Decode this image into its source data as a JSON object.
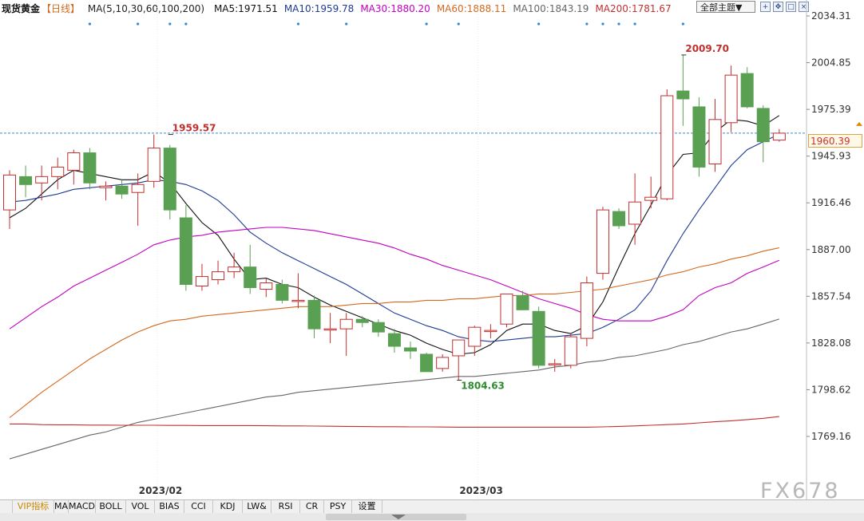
{
  "header": {
    "symbol": "现货黄金",
    "period": "【日线】",
    "indicator_label": "MA(5,10,30,60,100,200)",
    "ma_items": [
      {
        "label": "MA5:1971.51",
        "color": "#111111"
      },
      {
        "label": "MA10:1959.78",
        "color": "#1f3a93"
      },
      {
        "label": "MA30:1880.20",
        "color": "#c000c0"
      },
      {
        "label": "MA60:1888.11",
        "color": "#d2691e"
      },
      {
        "label": "MA100:1843.19",
        "color": "#666666"
      },
      {
        "label": "MA200:1781.67",
        "color": "#c03030"
      }
    ],
    "theme_button": "全部主题▼",
    "tool_icons": [
      "expand-icon",
      "move-icon",
      "restore-icon",
      "close-icon"
    ]
  },
  "current_price_tag": "1960.39",
  "watermark": "FX678",
  "tabs": [
    "VIP指标",
    "MA",
    "MACD",
    "BOLL",
    "VOL",
    "BIAS",
    "CCI",
    "KDJ",
    "LW&",
    "RSI",
    "CR",
    "PSY",
    "设置"
  ],
  "chart_data": {
    "type": "candlestick",
    "yticks": [
      2034.31,
      2004.85,
      1975.39,
      1945.93,
      1916.46,
      1887.0,
      1857.54,
      1828.08,
      1798.62,
      1769.16
    ],
    "ylim": [
      1757,
      2040
    ],
    "xticks": [
      {
        "index": 9,
        "label": "2023/02"
      },
      {
        "index": 29,
        "label": "2023/03"
      }
    ],
    "current_price": 1960.39,
    "annotations": [
      {
        "index": 10,
        "value": 1959.57,
        "text": "1959.57",
        "color": "#c03030"
      },
      {
        "index": 28,
        "value": 1804.63,
        "text": "1804.63",
        "color": "#2e8b2e"
      },
      {
        "index": 42,
        "value": 2009.7,
        "text": "2009.70",
        "color": "#c03030"
      }
    ],
    "up_color": "#c03030",
    "down_color": "#5aa052",
    "candles": [
      {
        "o": 1912,
        "h": 1937,
        "l": 1900,
        "c": 1934
      },
      {
        "o": 1933,
        "h": 1940,
        "l": 1920,
        "c": 1928
      },
      {
        "o": 1929,
        "h": 1940,
        "l": 1918,
        "c": 1933
      },
      {
        "o": 1933,
        "h": 1945,
        "l": 1925,
        "c": 1939
      },
      {
        "o": 1937,
        "h": 1950,
        "l": 1928,
        "c": 1948
      },
      {
        "o": 1948,
        "h": 1951,
        "l": 1925,
        "c": 1929
      },
      {
        "o": 1926,
        "h": 1930,
        "l": 1918,
        "c": 1927
      },
      {
        "o": 1927,
        "h": 1931,
        "l": 1919,
        "c": 1922
      },
      {
        "o": 1923,
        "h": 1935,
        "l": 1902,
        "c": 1928
      },
      {
        "o": 1930,
        "h": 1959.57,
        "l": 1926,
        "c": 1951
      },
      {
        "o": 1951,
        "h": 1953,
        "l": 1906,
        "c": 1912
      },
      {
        "o": 1907,
        "h": 1915,
        "l": 1861,
        "c": 1865
      },
      {
        "o": 1864,
        "h": 1878,
        "l": 1861,
        "c": 1870
      },
      {
        "o": 1868,
        "h": 1880,
        "l": 1865,
        "c": 1873
      },
      {
        "o": 1873,
        "h": 1885,
        "l": 1869,
        "c": 1876
      },
      {
        "o": 1876,
        "h": 1890,
        "l": 1859,
        "c": 1863
      },
      {
        "o": 1862,
        "h": 1869,
        "l": 1857,
        "c": 1866
      },
      {
        "o": 1865,
        "h": 1868,
        "l": 1853,
        "c": 1855
      },
      {
        "o": 1855,
        "h": 1872,
        "l": 1850,
        "c": 1855
      },
      {
        "o": 1855,
        "h": 1858,
        "l": 1831,
        "c": 1837
      },
      {
        "o": 1837,
        "h": 1847,
        "l": 1828,
        "c": 1837
      },
      {
        "o": 1837,
        "h": 1847,
        "l": 1820,
        "c": 1843
      },
      {
        "o": 1843,
        "h": 1845,
        "l": 1838,
        "c": 1841
      },
      {
        "o": 1841,
        "h": 1843,
        "l": 1832,
        "c": 1835
      },
      {
        "o": 1834,
        "h": 1837,
        "l": 1822,
        "c": 1826
      },
      {
        "o": 1825,
        "h": 1829,
        "l": 1818,
        "c": 1823
      },
      {
        "o": 1821,
        "h": 1822,
        "l": 1810,
        "c": 1810
      },
      {
        "o": 1812,
        "h": 1821,
        "l": 1810,
        "c": 1819
      },
      {
        "o": 1820,
        "h": 1830,
        "l": 1804.63,
        "c": 1830
      },
      {
        "o": 1826,
        "h": 1839,
        "l": 1820,
        "c": 1838
      },
      {
        "o": 1836,
        "h": 1840,
        "l": 1831,
        "c": 1836
      },
      {
        "o": 1840,
        "h": 1859,
        "l": 1838,
        "c": 1859
      },
      {
        "o": 1858,
        "h": 1861,
        "l": 1850,
        "c": 1849
      },
      {
        "o": 1848,
        "h": 1851,
        "l": 1812,
        "c": 1814
      },
      {
        "o": 1815,
        "h": 1818,
        "l": 1810,
        "c": 1815
      },
      {
        "o": 1814,
        "h": 1834,
        "l": 1812,
        "c": 1832
      },
      {
        "o": 1831,
        "h": 1870,
        "l": 1826,
        "c": 1866
      },
      {
        "o": 1872,
        "h": 1914,
        "l": 1868,
        "c": 1912
      },
      {
        "o": 1911,
        "h": 1913,
        "l": 1900,
        "c": 1902
      },
      {
        "o": 1903,
        "h": 1935,
        "l": 1890,
        "c": 1917
      },
      {
        "o": 1918,
        "h": 1933,
        "l": 1913,
        "c": 1920
      },
      {
        "o": 1919,
        "h": 1988,
        "l": 1918,
        "c": 1984
      },
      {
        "o": 1987,
        "h": 2009.7,
        "l": 1965,
        "c": 1982
      },
      {
        "o": 1977,
        "h": 1983,
        "l": 1933,
        "c": 1939
      },
      {
        "o": 1941,
        "h": 1982,
        "l": 1936,
        "c": 1969
      },
      {
        "o": 1967,
        "h": 2003,
        "l": 1961,
        "c": 1997
      },
      {
        "o": 1998,
        "h": 2002,
        "l": 1976,
        "c": 1977
      },
      {
        "o": 1976,
        "h": 1978,
        "l": 1942,
        "c": 1955
      },
      {
        "o": 1956,
        "h": 1963,
        "l": 1955,
        "c": 1960.39
      }
    ],
    "series": [
      {
        "name": "MA5",
        "color": "#111111",
        "values": [
          1907,
          1913,
          1922,
          1931,
          1937,
          1935,
          1933,
          1931,
          1931,
          1936,
          1929,
          1916,
          1904,
          1896,
          1881,
          1868,
          1869,
          1865,
          1863,
          1857,
          1852,
          1848,
          1844,
          1840,
          1836,
          1833,
          1828,
          1824,
          1821,
          1822,
          1827,
          1836,
          1840,
          1840,
          1836,
          1834,
          1839,
          1854,
          1876,
          1897,
          1915,
          1934,
          1947,
          1948,
          1961,
          1969,
          1968,
          1965,
          1971.51
        ]
      },
      {
        "name": "MA10",
        "color": "#1f3a93",
        "values": [
          1917,
          1918,
          1920,
          1922,
          1925,
          1926,
          1927,
          1928,
          1929,
          1931,
          1930,
          1928,
          1924,
          1918,
          1909,
          1898,
          1891,
          1885,
          1880,
          1875,
          1870,
          1865,
          1859,
          1853,
          1847,
          1843,
          1839,
          1836,
          1832,
          1830,
          1829,
          1830,
          1831,
          1832,
          1832,
          1833,
          1834,
          1838,
          1843,
          1849,
          1861,
          1880,
          1897,
          1912,
          1926,
          1940,
          1950,
          1955,
          1959.78
        ]
      },
      {
        "name": "MA30",
        "color": "#c000c0",
        "values": [
          1837,
          1844,
          1851,
          1857,
          1864,
          1869,
          1874,
          1879,
          1884,
          1890,
          1893,
          1895,
          1896,
          1898,
          1899,
          1900,
          1901,
          1901,
          1900,
          1899,
          1897,
          1895,
          1893,
          1891,
          1888,
          1884,
          1881,
          1877,
          1874,
          1871,
          1868,
          1864,
          1860,
          1856,
          1853,
          1850,
          1846,
          1843,
          1842,
          1842,
          1842,
          1845,
          1849,
          1858,
          1863,
          1866,
          1872,
          1876,
          1880.2
        ]
      },
      {
        "name": "MA60",
        "color": "#d2691e",
        "values": [
          1781,
          1789,
          1797,
          1804,
          1811,
          1818,
          1824,
          1830,
          1835,
          1839,
          1842,
          1843,
          1845,
          1846,
          1847,
          1848,
          1849,
          1850,
          1851,
          1851,
          1851,
          1852,
          1853,
          1853,
          1854,
          1854,
          1855,
          1855,
          1856,
          1856,
          1857,
          1858,
          1858,
          1859,
          1859,
          1860,
          1861,
          1862,
          1864,
          1866,
          1868,
          1871,
          1873,
          1876,
          1878,
          1881,
          1883,
          1886,
          1888.11
        ]
      },
      {
        "name": "MA100",
        "color": "#666666",
        "values": [
          1755,
          1758,
          1761,
          1764,
          1767,
          1770,
          1772,
          1775,
          1778,
          1780,
          1782,
          1784,
          1786,
          1788,
          1790,
          1792,
          1794,
          1795,
          1797,
          1798,
          1799,
          1800,
          1801,
          1802,
          1803,
          1804,
          1805,
          1806,
          1807,
          1807,
          1808,
          1809,
          1810,
          1811,
          1813,
          1814,
          1816,
          1817,
          1819,
          1820,
          1822,
          1824,
          1827,
          1829,
          1832,
          1835,
          1837,
          1840,
          1843.19
        ]
      },
      {
        "name": "MA200",
        "color": "#c03030",
        "values": [
          1777,
          1777,
          1776.6,
          1776.5,
          1776.5,
          1776.3,
          1776.3,
          1776.2,
          1776.2,
          1776.2,
          1776.1,
          1776.1,
          1776,
          1776,
          1776,
          1776,
          1775.9,
          1775.8,
          1775.8,
          1775.7,
          1775.6,
          1775.5,
          1775.4,
          1775.3,
          1775.3,
          1775.2,
          1775.2,
          1775.1,
          1775,
          1775,
          1775,
          1775,
          1775,
          1775,
          1775,
          1775,
          1775,
          1775.2,
          1775.5,
          1775.8,
          1776.2,
          1776.6,
          1777,
          1777.7,
          1778.4,
          1779,
          1779.8,
          1780.6,
          1781.67
        ]
      }
    ]
  }
}
